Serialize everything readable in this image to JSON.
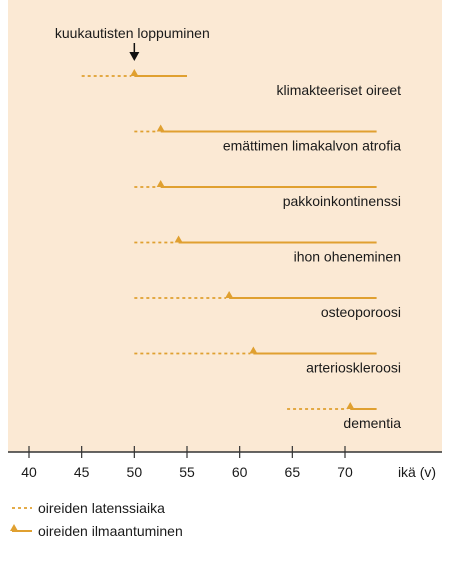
{
  "chart_data": {
    "type": "timeline",
    "x_ticks": [
      40,
      45,
      50,
      55,
      60,
      65,
      70
    ],
    "xlim": [
      37,
      74
    ],
    "xlabel": "ikä (v)",
    "annotation": {
      "text": "kuukautisten loppuminen",
      "x": 50
    },
    "rows": [
      {
        "label": "klimakteeriset oireet",
        "latency_start": 45,
        "onset": 50,
        "end": 55
      },
      {
        "label": "emättimen limakalvon atrofia",
        "latency_start": 50,
        "onset": 52.5,
        "end": 73
      },
      {
        "label": "pakkoinkontinenssi",
        "latency_start": 50,
        "onset": 52.5,
        "end": 73
      },
      {
        "label": "ihon oheneminen",
        "latency_start": 50,
        "onset": 54.2,
        "end": 73
      },
      {
        "label": "osteoporoosi",
        "latency_start": 50,
        "onset": 59,
        "end": 73
      },
      {
        "label": "arterioskleroosi",
        "latency_start": 50,
        "onset": 61.3,
        "end": 73
      },
      {
        "label": "dementia",
        "latency_start": 64.5,
        "onset": 70.5,
        "end": 73
      }
    ],
    "legend": [
      {
        "key": "latency",
        "label": "oireiden latenssiaika"
      },
      {
        "key": "onset",
        "label": "oireiden ilmaantuminen"
      }
    ],
    "colors": {
      "background": "#fbe9d4",
      "line": "#e0a030",
      "axis": "#333333",
      "text": "#1a1a1a"
    }
  }
}
